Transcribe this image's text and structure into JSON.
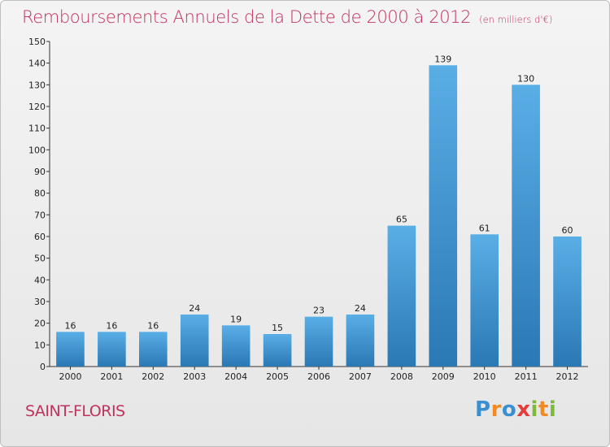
{
  "page": {
    "title": "Remboursements Annuels de la Dette de 2000 à 2012",
    "subtitle": "(en milliers d'€)",
    "commune": "SAINT-FLORIS",
    "logo": {
      "text": "Proxiti",
      "letters": [
        {
          "ch": "P",
          "color": "#3a8fd1"
        },
        {
          "ch": "r",
          "color": "#ef8b22"
        },
        {
          "ch": "o",
          "color": "#3a8fd1"
        },
        {
          "ch": "x",
          "color": "#e43b3b"
        },
        {
          "ch": "i",
          "color": "#7fb93a"
        },
        {
          "ch": "t",
          "color": "#ef8b22"
        },
        {
          "ch": "i",
          "color": "#7fb93a"
        }
      ]
    }
  },
  "chart_data": {
    "type": "bar",
    "categories": [
      "2000",
      "2001",
      "2002",
      "2003",
      "2004",
      "2005",
      "2006",
      "2007",
      "2008",
      "2009",
      "2010",
      "2011",
      "2012"
    ],
    "values": [
      16,
      16,
      16,
      24,
      19,
      15,
      23,
      24,
      65,
      139,
      61,
      130,
      60
    ],
    "ylim": [
      0,
      150
    ],
    "ytick_step": 10,
    "grid": false,
    "bar_color_top": "#5aaee6",
    "bar_color_bottom": "#2a78b4"
  }
}
